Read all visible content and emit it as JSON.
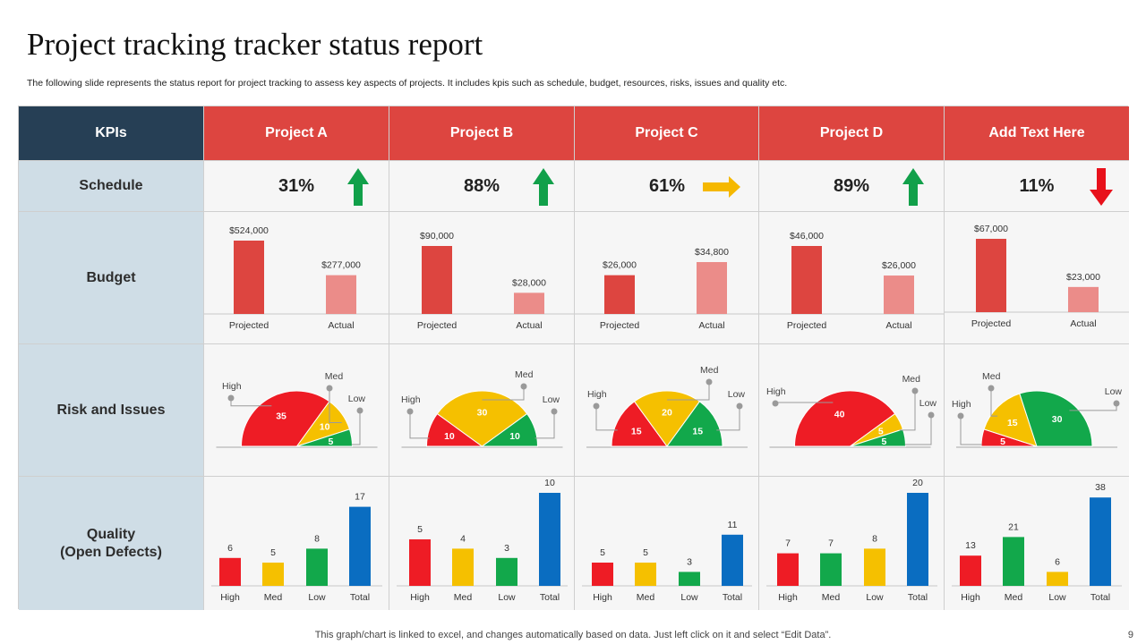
{
  "title": "Project tracking tracker status report",
  "subtitle": "The following slide represents the status report for project tracking to assess key aspects of projects. It includes kpis such as schedule, budget, resources, risks, issues and quality etc.",
  "footer": "This graph/chart is linked to excel,  and changes automatically based on data. Just left click on it and select “Edit Data”.",
  "page_number": "9",
  "header": {
    "kpi": "KPIs",
    "projects": [
      "Project A",
      "Project B",
      "Project C",
      "Project D",
      "Add Text Here"
    ]
  },
  "rows": {
    "schedule": "Schedule",
    "budget": "Budget",
    "risk": "Risk and Issues",
    "quality_line1": "Quality",
    "quality_line2": "(Open Defects)"
  },
  "colors": {
    "header_red": "#dd4540",
    "kpi_navy": "#263f55",
    "label_bg": "#cfdde6",
    "projected": "#dd4540",
    "actual": "#eb8c89",
    "high": "#ee1c25",
    "med": "#f5c000",
    "low": "#12a84b",
    "total": "#0a6dc1",
    "arrow_up": "#11a04a",
    "arrow_right": "#f5b800",
    "arrow_down": "#e8111b"
  },
  "schedule": [
    {
      "value": "31%",
      "trend": "up"
    },
    {
      "value": "88%",
      "trend": "up"
    },
    {
      "value": "61%",
      "trend": "right"
    },
    {
      "value": "89%",
      "trend": "up"
    },
    {
      "value": "11%",
      "trend": "down"
    }
  ],
  "chart_data": [
    {
      "type": "bar",
      "title": "Budget",
      "categories": [
        "Projected",
        "Actual"
      ],
      "series": [
        {
          "name": "Project A",
          "values": [
            524000,
            277000
          ],
          "labels": [
            "$524,000",
            "$277,000"
          ]
        },
        {
          "name": "Project B",
          "values": [
            90000,
            28000
          ],
          "labels": [
            "$90,000",
            "$28,000"
          ]
        },
        {
          "name": "Project C",
          "values": [
            26000,
            34800
          ],
          "labels": [
            "$26,000",
            "$34,800"
          ]
        },
        {
          "name": "Project D",
          "values": [
            46000,
            26000
          ],
          "labels": [
            "$46,000",
            "$26,000"
          ]
        },
        {
          "name": "Add Text Here",
          "values": [
            67000,
            23000
          ],
          "labels": [
            "$67,000",
            "$23,000"
          ]
        }
      ]
    },
    {
      "type": "pie",
      "title": "Risk and Issues",
      "categories": [
        "High",
        "Med",
        "Low"
      ],
      "series": [
        {
          "name": "Project A",
          "values": [
            35,
            10,
            5
          ]
        },
        {
          "name": "Project B",
          "values": [
            10,
            30,
            10
          ]
        },
        {
          "name": "Project C",
          "values": [
            15,
            20,
            15
          ]
        },
        {
          "name": "Project D",
          "values": [
            40,
            5,
            5
          ]
        },
        {
          "name": "Add Text Here",
          "values": [
            5,
            15,
            30
          ]
        }
      ]
    },
    {
      "type": "bar",
      "title": "Quality (Open Defects)",
      "categories": [
        "High",
        "Med",
        "Low",
        "Total"
      ],
      "series": [
        {
          "name": "Project A",
          "values": [
            6,
            5,
            8,
            17
          ],
          "ylim": [
            0,
            20
          ]
        },
        {
          "name": "Project B",
          "values": [
            5,
            4,
            3,
            10
          ],
          "ylim": [
            0,
            10
          ]
        },
        {
          "name": "Project C",
          "values": [
            5,
            5,
            3,
            11
          ],
          "ylim": [
            0,
            20
          ]
        },
        {
          "name": "Project D",
          "values": [
            7,
            7,
            8,
            20
          ],
          "ylim": [
            0,
            20
          ]
        },
        {
          "name": "Add Text Here",
          "values": [
            13,
            21,
            6,
            38
          ],
          "ylim": [
            0,
            40
          ]
        }
      ]
    }
  ]
}
